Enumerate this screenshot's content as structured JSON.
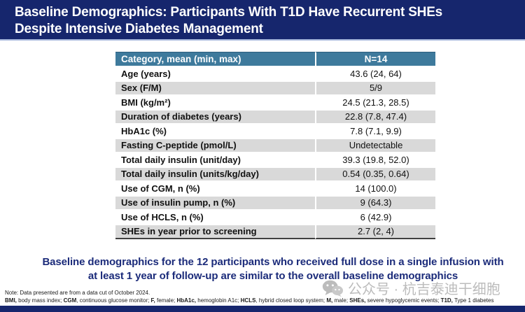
{
  "title": {
    "line1": "Baseline Demographics: Participants With T1D Have Recurrent SHEs",
    "line2": "Despite Intensive Diabetes Management"
  },
  "table": {
    "header": {
      "category": "Category, mean (min, max)",
      "value": "N=14"
    },
    "rows": [
      {
        "label": "Age (years)",
        "value": "43.6 (24, 64)"
      },
      {
        "label": "Sex (F/M)",
        "value": "5/9"
      },
      {
        "label": "BMI (kg/m²)",
        "value": "24.5 (21.3, 28.5)"
      },
      {
        "label": "Duration of diabetes (years)",
        "value": "22.8 (7.8, 47.4)"
      },
      {
        "label": "HbA1c (%)",
        "value": "7.8 (7.1, 9.9)"
      },
      {
        "label": "Fasting C-peptide (pmol/L)",
        "value": "Undetectable"
      },
      {
        "label": "Total daily insulin (unit/day)",
        "value": "39.3 (19.8, 52.0)"
      },
      {
        "label": "Total daily insulin (units/kg/day)",
        "value": "0.54 (0.35, 0.64)"
      },
      {
        "label": "Use of CGM, n (%)",
        "value": "14 (100.0)"
      },
      {
        "label": "Use of insulin pump, n (%)",
        "value": "9 (64.3)"
      },
      {
        "label": "Use of HCLS, n (%)",
        "value": "6 (42.9)"
      },
      {
        "label": "SHEs in year prior to screening",
        "value": "2.7 (2, 4)"
      }
    ]
  },
  "statement": {
    "line1": "Baseline demographics for the 12 participants who received full dose in a single infusion with",
    "line2": "at least 1 year of follow-up are similar to the overall baseline demographics"
  },
  "watermark": {
    "text": "公众号 · 杭吉泰迪干细胞",
    "icon": "wechat-icon"
  },
  "footnotes": {
    "line1": "Note: Data presented are from a data cut of October 2024.",
    "line2_segments": [
      {
        "t": "BMI,",
        "b": true
      },
      {
        "t": " body mass index; "
      },
      {
        "t": "CGM",
        "b": true
      },
      {
        "t": ", continuous glucose monitor; "
      },
      {
        "t": "F,",
        "b": true
      },
      {
        "t": " female; "
      },
      {
        "t": "HbA1c,",
        "b": true
      },
      {
        "t": " hemoglobin A1c; "
      },
      {
        "t": "HCLS",
        "b": true
      },
      {
        "t": ", hybrid closed loop system; "
      },
      {
        "t": "M,",
        "b": true
      },
      {
        "t": " male; "
      },
      {
        "t": "SHEs,",
        "b": true
      },
      {
        "t": " severe hypoglycemic events; "
      },
      {
        "t": "T1D,",
        "b": true
      },
      {
        "t": " Type 1 diabetes"
      }
    ]
  },
  "colors": {
    "title_bar": "#16266d",
    "title_underline": "#a9b9dc",
    "table_header_bg": "#3e7a9c",
    "row_alt_bg": "#d9d9d9",
    "table_bottom_border": "#404040",
    "statement_text": "#1b2b7a",
    "watermark": "#bcbcbc",
    "footer_bar": "#16266d"
  }
}
